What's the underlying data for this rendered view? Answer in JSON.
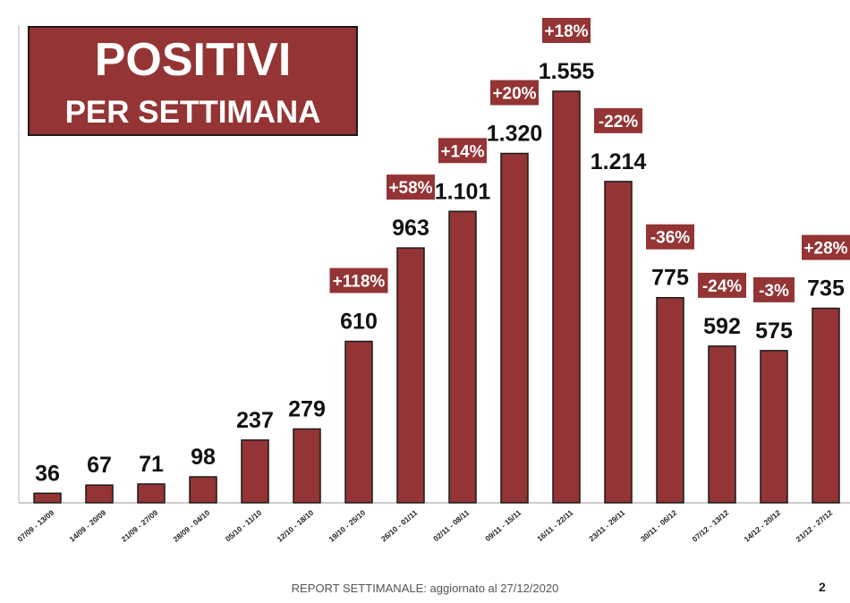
{
  "chart_data": {
    "type": "bar",
    "title": "POSITIVI",
    "subtitle": "PER SETTIMANA",
    "categories": [
      "07/09 - 13/09",
      "14/09 - 20/09",
      "21/09 - 27/09",
      "28/09 - 04/10",
      "05/10 - 11/10",
      "12/10 - 18/10",
      "19/10 - 25/10",
      "26/10 - 01/11",
      "02/11 - 08/11",
      "09/11 - 15/11",
      "16/11 - 22/11",
      "23/11 - 29/11",
      "30/11 - 06/12",
      "07/12 - 13/12",
      "14/12 - 20/12",
      "21/12 - 27/12"
    ],
    "values": [
      36,
      67,
      71,
      98,
      237,
      279,
      610,
      963,
      1101,
      1320,
      1555,
      1214,
      775,
      592,
      575,
      735
    ],
    "value_labels": [
      "36",
      "67",
      "71",
      "98",
      "237",
      "279",
      "610",
      "963",
      "1.101",
      "1.320",
      "1.555",
      "1.214",
      "775",
      "592",
      "575",
      "735"
    ],
    "change_labels": [
      "",
      "",
      "",
      "",
      "",
      "",
      "+118%",
      "+58%",
      "+14%",
      "+20%",
      "+18%",
      "-22%",
      "-36%",
      "-24%",
      "-3%",
      "+28%"
    ],
    "ylim": [
      0,
      1600
    ],
    "grid": false,
    "bar_color": "#943434",
    "badge_color": "#943434",
    "xlabel": "",
    "ylabel": ""
  },
  "footer": {
    "report_text": "REPORT SETTIMANALE: aggiornato al 27/12/2020",
    "page_number": "2"
  }
}
